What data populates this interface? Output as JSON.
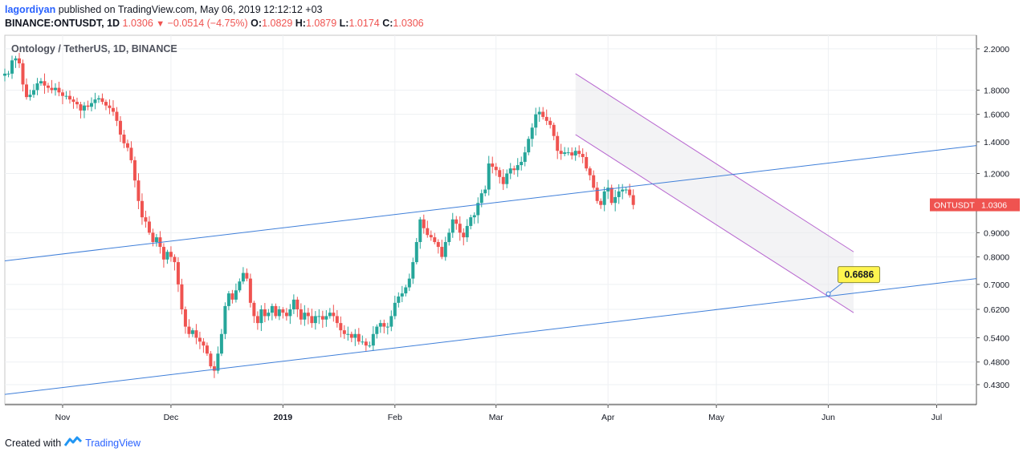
{
  "header": {
    "user": "lagordiyan",
    "published": " published on TradingView.com, May 06, 2019 12:12:12 +03",
    "symbol": "BINANCE:ONTUSDT, 1D",
    "last": " 1.0306",
    "change": " −0.0514 (−4.75%)",
    "o_label": " O:",
    "o_val": "1.0829",
    "h_label": " H:",
    "h_val": "1.0879",
    "l_label": " L:",
    "l_val": "1.0174",
    "c_label": " C:",
    "c_val": "1.0306"
  },
  "footer": {
    "created": "Created with",
    "brand": "TradingView"
  },
  "colors": {
    "up": "#26a69a",
    "down": "#ef5350",
    "trend": "#3f7fd9",
    "channel": "#b868d0",
    "callout": "#fff44f",
    "price_label": "#ef5350"
  },
  "chart_data": {
    "type": "candlestick",
    "title": "Ontology / TetherUS, 1D, BINANCE",
    "y_scale": "log",
    "ylim": [
      0.39,
      2.35
    ],
    "y_ticks": [
      "2.2000",
      "1.8000",
      "1.6000",
      "1.4000",
      "1.2000",
      "0.9000",
      "0.8000",
      "0.7000",
      "0.6200",
      "0.5400",
      "0.4800",
      "0.4300"
    ],
    "y_tick_values": [
      2.2,
      1.8,
      1.6,
      1.4,
      1.2,
      0.9,
      0.8,
      0.7,
      0.62,
      0.54,
      0.48,
      0.43
    ],
    "x_start": "2018-10-16",
    "x_end": "2019-07-12",
    "x_ticks": [
      {
        "label": "Nov",
        "date": "2018-11-01"
      },
      {
        "label": "Dec",
        "date": "2018-12-01"
      },
      {
        "label": "2019",
        "date": "2019-01-01"
      },
      {
        "label": "Feb",
        "date": "2019-02-01"
      },
      {
        "label": "Mar",
        "date": "2019-03-01"
      },
      {
        "label": "Apr",
        "date": "2019-04-01"
      },
      {
        "label": "May",
        "date": "2019-05-01"
      },
      {
        "label": "Jun",
        "date": "2019-06-01"
      },
      {
        "label": "Jul",
        "date": "2019-07-01"
      }
    ],
    "first_candle_date": "2018-10-16",
    "close_anchors": [
      [
        0,
        1.95
      ],
      [
        1,
        1.95
      ],
      [
        2,
        2.08
      ],
      [
        3,
        2.1
      ],
      [
        4,
        2.05
      ],
      [
        5,
        1.85
      ],
      [
        6,
        1.74
      ],
      [
        7,
        1.76
      ],
      [
        8,
        1.8
      ],
      [
        9,
        1.86
      ],
      [
        10,
        1.88
      ],
      [
        11,
        1.84
      ],
      [
        12,
        1.82
      ],
      [
        13,
        1.8
      ],
      [
        14,
        1.82
      ],
      [
        15,
        1.78
      ],
      [
        16,
        1.75
      ],
      [
        17,
        1.75
      ],
      [
        18,
        1.72
      ],
      [
        19,
        1.7
      ],
      [
        20,
        1.68
      ],
      [
        21,
        1.63
      ],
      [
        22,
        1.67
      ],
      [
        23,
        1.66
      ],
      [
        24,
        1.69
      ],
      [
        25,
        1.72
      ],
      [
        26,
        1.73
      ],
      [
        27,
        1.7
      ],
      [
        28,
        1.67
      ],
      [
        29,
        1.65
      ],
      [
        30,
        1.62
      ],
      [
        31,
        1.55
      ],
      [
        32,
        1.45
      ],
      [
        33,
        1.39
      ],
      [
        34,
        1.36
      ],
      [
        35,
        1.28
      ],
      [
        36,
        1.16
      ],
      [
        37,
        1.05
      ],
      [
        38,
        0.97
      ],
      [
        39,
        0.95
      ],
      [
        40,
        0.9
      ],
      [
        41,
        0.86
      ],
      [
        42,
        0.88
      ],
      [
        43,
        0.84
      ],
      [
        44,
        0.79
      ],
      [
        45,
        0.82
      ],
      [
        46,
        0.8
      ],
      [
        47,
        0.78
      ],
      [
        48,
        0.7
      ],
      [
        49,
        0.62
      ],
      [
        50,
        0.57
      ],
      [
        51,
        0.55
      ],
      [
        52,
        0.56
      ],
      [
        53,
        0.54
      ],
      [
        54,
        0.53
      ],
      [
        55,
        0.52
      ],
      [
        56,
        0.5
      ],
      [
        57,
        0.47
      ],
      [
        58,
        0.46
      ],
      [
        59,
        0.5
      ],
      [
        60,
        0.55
      ],
      [
        61,
        0.63
      ],
      [
        62,
        0.67
      ],
      [
        63,
        0.65
      ],
      [
        64,
        0.68
      ],
      [
        65,
        0.71
      ],
      [
        66,
        0.74
      ],
      [
        67,
        0.72
      ],
      [
        68,
        0.64
      ],
      [
        69,
        0.6
      ],
      [
        70,
        0.58
      ],
      [
        71,
        0.62
      ],
      [
        72,
        0.6
      ],
      [
        73,
        0.61
      ],
      [
        74,
        0.63
      ],
      [
        75,
        0.6
      ],
      [
        76,
        0.62
      ],
      [
        77,
        0.61
      ],
      [
        78,
        0.6
      ],
      [
        79,
        0.62
      ],
      [
        80,
        0.65
      ],
      [
        81,
        0.62
      ],
      [
        82,
        0.59
      ],
      [
        83,
        0.61
      ],
      [
        84,
        0.6
      ],
      [
        85,
        0.58
      ],
      [
        86,
        0.6
      ],
      [
        87,
        0.6
      ],
      [
        88,
        0.59
      ],
      [
        89,
        0.6
      ],
      [
        90,
        0.61
      ],
      [
        91,
        0.6
      ],
      [
        92,
        0.58
      ],
      [
        93,
        0.56
      ],
      [
        94,
        0.55
      ],
      [
        95,
        0.55
      ],
      [
        96,
        0.54
      ],
      [
        97,
        0.55
      ],
      [
        98,
        0.53
      ],
      [
        99,
        0.53
      ],
      [
        100,
        0.52
      ],
      [
        101,
        0.52
      ],
      [
        102,
        0.55
      ],
      [
        103,
        0.57
      ],
      [
        104,
        0.58
      ],
      [
        105,
        0.57
      ],
      [
        106,
        0.57
      ],
      [
        107,
        0.6
      ],
      [
        108,
        0.64
      ],
      [
        109,
        0.66
      ],
      [
        110,
        0.67
      ],
      [
        111,
        0.69
      ],
      [
        112,
        0.72
      ],
      [
        113,
        0.78
      ],
      [
        114,
        0.86
      ],
      [
        115,
        0.96
      ],
      [
        116,
        0.92
      ],
      [
        117,
        0.89
      ],
      [
        118,
        0.88
      ],
      [
        119,
        0.86
      ],
      [
        120,
        0.84
      ],
      [
        121,
        0.8
      ],
      [
        122,
        0.86
      ],
      [
        123,
        0.9
      ],
      [
        124,
        0.96
      ],
      [
        125,
        0.94
      ],
      [
        126,
        0.9
      ],
      [
        127,
        0.88
      ],
      [
        128,
        0.93
      ],
      [
        129,
        0.97
      ],
      [
        130,
        0.98
      ],
      [
        131,
        1.04
      ],
      [
        132,
        1.09
      ],
      [
        133,
        1.11
      ],
      [
        134,
        1.26
      ],
      [
        135,
        1.24
      ],
      [
        136,
        1.22
      ],
      [
        137,
        1.18
      ],
      [
        138,
        1.14
      ],
      [
        139,
        1.2
      ],
      [
        140,
        1.23
      ],
      [
        141,
        1.22
      ],
      [
        142,
        1.25
      ],
      [
        143,
        1.27
      ],
      [
        144,
        1.33
      ],
      [
        145,
        1.42
      ],
      [
        146,
        1.5
      ],
      [
        147,
        1.6
      ],
      [
        148,
        1.62
      ],
      [
        149,
        1.58
      ],
      [
        150,
        1.55
      ],
      [
        151,
        1.52
      ],
      [
        152,
        1.44
      ],
      [
        153,
        1.34
      ],
      [
        154,
        1.32
      ],
      [
        155,
        1.33
      ],
      [
        156,
        1.33
      ],
      [
        157,
        1.31
      ],
      [
        158,
        1.34
      ],
      [
        159,
        1.32
      ],
      [
        160,
        1.3
      ],
      [
        161,
        1.23
      ],
      [
        162,
        1.19
      ],
      [
        163,
        1.12
      ],
      [
        164,
        1.05
      ],
      [
        165,
        1.03
      ],
      [
        166,
        1.1
      ],
      [
        167,
        1.12
      ],
      [
        168,
        1.04
      ],
      [
        169,
        1.07
      ],
      [
        170,
        1.1
      ],
      [
        171,
        1.11
      ],
      [
        172,
        1.11
      ],
      [
        173,
        1.08
      ],
      [
        174,
        1.03
      ]
    ],
    "last_price": {
      "label": "ONTUSDT",
      "value": "1.0306"
    },
    "trendlines": [
      {
        "name": "upper-trendline",
        "from": [
          "2018-10-16",
          0.785
        ],
        "to": [
          "2019-07-12",
          1.375
        ]
      },
      {
        "name": "lower-trendline",
        "from": [
          "2018-10-16",
          0.41
        ],
        "to": [
          "2019-07-12",
          0.72
        ]
      }
    ],
    "channel": {
      "upper": {
        "from": [
          "2019-03-23",
          1.95
        ],
        "to": [
          "2019-06-08",
          0.82
        ]
      },
      "lower": {
        "from": [
          "2019-03-23",
          1.45
        ],
        "to": [
          "2019-06-08",
          0.61
        ]
      }
    },
    "annotation": {
      "value": "0.6686",
      "anchor": [
        "2019-06-01",
        0.6686
      ]
    }
  }
}
